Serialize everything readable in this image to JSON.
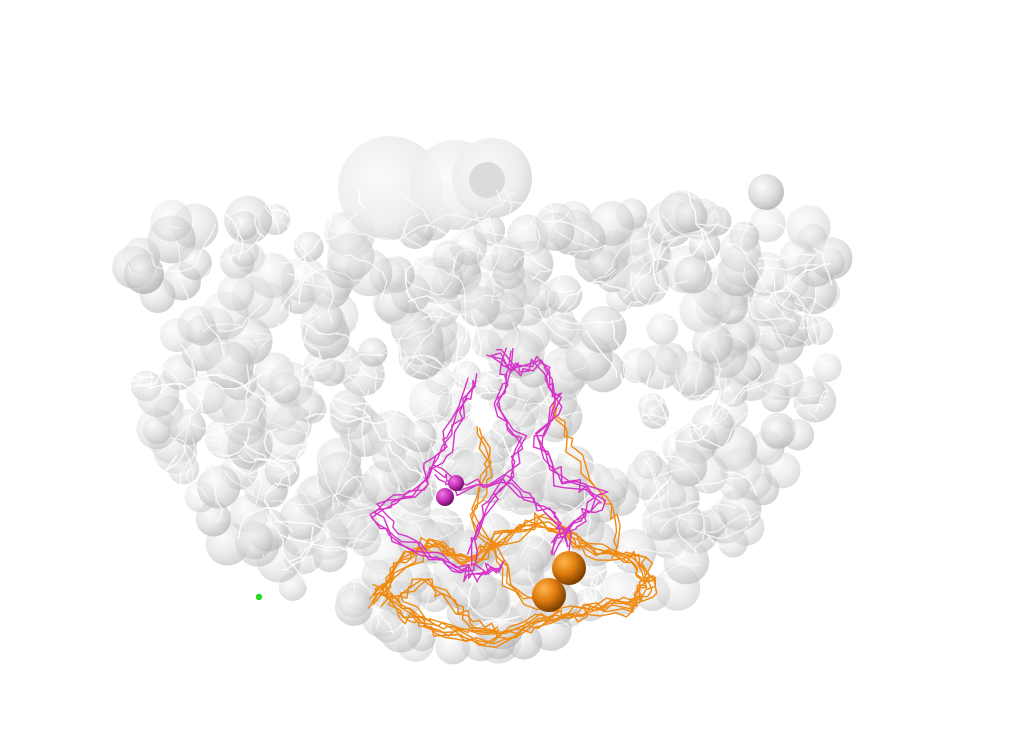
{
  "scene": {
    "background_color": "#ffffff",
    "subject": "3d-molecular-rendering",
    "colors": {
      "sphere": "#b9b9b9",
      "sphere_dark": "#8e8e8e",
      "strand": "#f4f4f4",
      "chain_magenta": "#d633c8",
      "chain_orange": "#f08a10",
      "ion_orange": "#d9760c",
      "ion_magenta": "#c02cb3",
      "marker_green": "#22dd22"
    },
    "elements": {
      "sphere_cloud": "white-grey-sphere-cloud",
      "magenta_chain": "magenta-backbone-trace",
      "orange_chain": "orange-backbone-trace",
      "orange_ions": 2,
      "magenta_ions": 2,
      "green_marker": 1
    }
  }
}
